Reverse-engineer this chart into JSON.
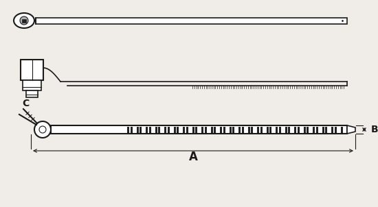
{
  "bg_color": "#f0ede8",
  "line_color": "#1a1a1a",
  "white_fill": "#ffffff",
  "gray_fill": "#b0b0b0",
  "dark_fill": "#222222",
  "label_A": "A",
  "label_B": "B",
  "label_C": "C",
  "fig_width": 5.5,
  "fig_height": 3.02,
  "dpi": 100
}
